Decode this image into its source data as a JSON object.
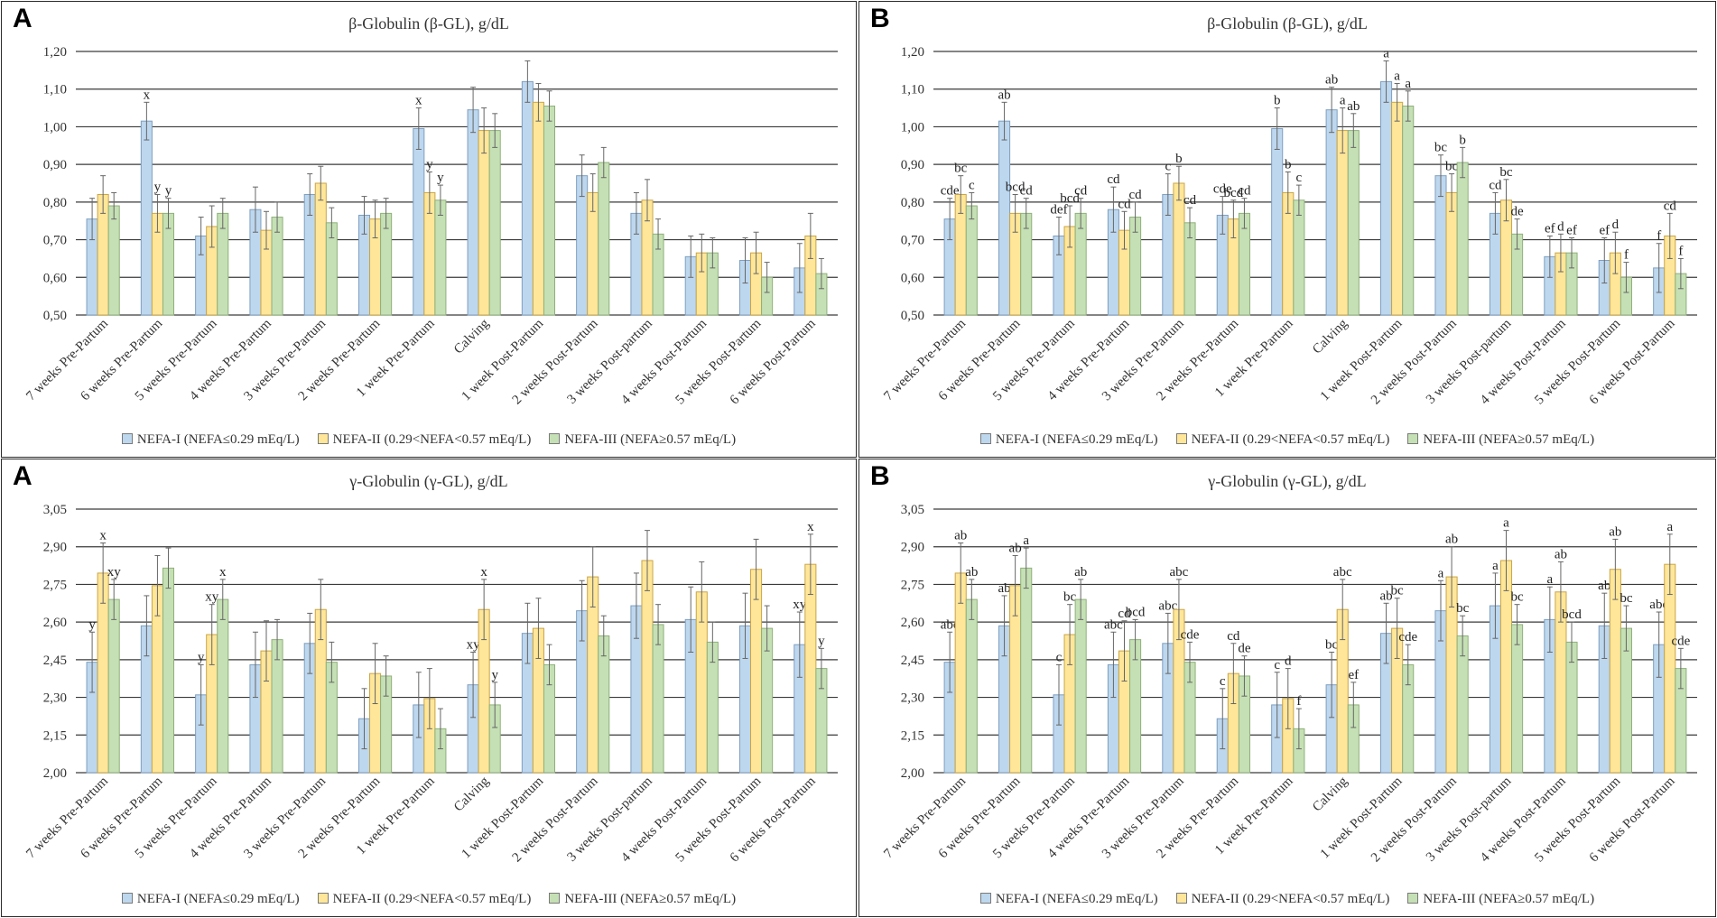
{
  "legend": [
    {
      "label": "NEFA-I (NEFA≤0.29 mEq/L)",
      "color": "#bdd7ee"
    },
    {
      "label": "NEFA-II (0.29<NEFA<0.57 mEq/L)",
      "color": "#ffe699"
    },
    {
      "label": "NEFA-III (NEFA≥0.57 mEq/L)",
      "color": "#c5e0b4"
    }
  ],
  "chart_data": [
    {
      "panel": "A",
      "type": "bar",
      "title": "β-Globulin (β-GL), g/dL",
      "ylim": [
        0.5,
        1.2
      ],
      "yticks": [
        "0,50",
        "0,60",
        "0,70",
        "0,80",
        "0,90",
        "1,00",
        "1,10",
        "1,20"
      ],
      "categories": [
        "7 weeks Pre-Partum",
        "6 weeks Pre-Partum",
        "5 weeks Pre-Partum",
        "4 weeks Pre-Partum",
        "3 weeks Pre-Partum",
        "2 weeks Pre-Partum",
        "1 week Pre-Partum",
        "Calving",
        "1 week Post-Partum",
        "2 weeks Post-Partum",
        "3 weeks Post-partum",
        "4 weeks Post-Partum",
        "5 weeks Post-Partum",
        "6 weeks Post-Partum"
      ],
      "series": [
        {
          "name": "NEFA-I (NEFA≤0.29 mEq/L)",
          "values": [
            0.755,
            1.015,
            0.71,
            0.78,
            0.82,
            0.765,
            0.995,
            1.045,
            1.12,
            0.87,
            0.77,
            0.655,
            0.645,
            0.625
          ],
          "errors": [
            0.055,
            0.05,
            0.05,
            0.06,
            0.055,
            0.05,
            0.055,
            0.06,
            0.055,
            0.055,
            0.055,
            0.055,
            0.06,
            0.065
          ],
          "labels": [
            "",
            "x",
            "",
            "",
            "",
            "",
            "x",
            "",
            "",
            "",
            "",
            "",
            "",
            ""
          ]
        },
        {
          "name": "NEFA-II (0.29<NEFA<0.57 mEq/L)",
          "values": [
            0.82,
            0.77,
            0.735,
            0.725,
            0.85,
            0.755,
            0.825,
            0.99,
            1.065,
            0.825,
            0.805,
            0.665,
            0.665,
            0.71
          ],
          "errors": [
            0.05,
            0.05,
            0.055,
            0.05,
            0.045,
            0.05,
            0.055,
            0.06,
            0.05,
            0.05,
            0.055,
            0.05,
            0.055,
            0.06
          ],
          "labels": [
            "",
            "y",
            "",
            "",
            "",
            "",
            "y",
            "",
            "",
            "",
            "",
            "",
            "",
            ""
          ]
        },
        {
          "name": "NEFA-III (NEFA≥0.57 mEq/L)",
          "values": [
            0.79,
            0.77,
            0.77,
            0.76,
            0.745,
            0.77,
            0.805,
            0.99,
            1.055,
            0.905,
            0.715,
            0.665,
            0.6,
            0.61
          ],
          "errors": [
            0.035,
            0.04,
            0.04,
            0.04,
            0.04,
            0.04,
            0.04,
            0.045,
            0.04,
            0.04,
            0.04,
            0.04,
            0.04,
            0.04
          ],
          "labels": [
            "",
            "y",
            "",
            "",
            "",
            "",
            "y",
            "",
            "",
            "",
            "",
            "",
            "",
            ""
          ]
        }
      ]
    },
    {
      "panel": "B",
      "type": "bar",
      "title": "β-Globulin (β-GL), g/dL",
      "ylim": [
        0.5,
        1.2
      ],
      "yticks": [
        "0,50",
        "0,60",
        "0,70",
        "0,80",
        "0,90",
        "1,00",
        "1,10",
        "1,20"
      ],
      "categories": [
        "7 weeks Pre-Partum",
        "6 weeks Pre-Partum",
        "5 weeks Pre-Partum",
        "4 weeks Pre-Partum",
        "3 weeks Pre-Partum",
        "2 weeks Pre-Partum",
        "1 week Pre-Partum",
        "Calving",
        "1 week Post-Partum",
        "2 weeks Post-Partum",
        "3 weeks Post-partum",
        "4 weeks Post-Partum",
        "5 weeks Post-Partum",
        "6 weeks Post-Partum"
      ],
      "series": [
        {
          "name": "NEFA-I (NEFA≤0.29 mEq/L)",
          "values": [
            0.755,
            1.015,
            0.71,
            0.78,
            0.82,
            0.765,
            0.995,
            1.045,
            1.12,
            0.87,
            0.77,
            0.655,
            0.645,
            0.625
          ],
          "errors": [
            0.055,
            0.05,
            0.05,
            0.06,
            0.055,
            0.05,
            0.055,
            0.06,
            0.055,
            0.055,
            0.055,
            0.055,
            0.06,
            0.065
          ],
          "labels": [
            "cde",
            "ab",
            "def",
            "cd",
            "c",
            "cde",
            "b",
            "ab",
            "a",
            "bc",
            "cd",
            "ef",
            "ef",
            "f"
          ]
        },
        {
          "name": "NEFA-II (0.29<NEFA<0.57 mEq/L)",
          "values": [
            0.82,
            0.77,
            0.735,
            0.725,
            0.85,
            0.755,
            0.825,
            0.99,
            1.065,
            0.825,
            0.805,
            0.665,
            0.665,
            0.71
          ],
          "errors": [
            0.05,
            0.05,
            0.055,
            0.05,
            0.045,
            0.05,
            0.055,
            0.06,
            0.05,
            0.05,
            0.055,
            0.05,
            0.055,
            0.06
          ],
          "labels": [
            "bc",
            "bcd",
            "bcd",
            "cd",
            "b",
            "bcd",
            "b",
            "a",
            "a",
            "bc",
            "bc",
            "d",
            "d",
            "cd"
          ]
        },
        {
          "name": "NEFA-III (NEFA≥0.57 mEq/L)",
          "values": [
            0.79,
            0.77,
            0.77,
            0.76,
            0.745,
            0.77,
            0.805,
            0.99,
            1.055,
            0.905,
            0.715,
            0.665,
            0.6,
            0.61
          ],
          "errors": [
            0.035,
            0.04,
            0.04,
            0.04,
            0.04,
            0.04,
            0.04,
            0.045,
            0.04,
            0.04,
            0.04,
            0.04,
            0.04,
            0.04
          ],
          "labels": [
            "c",
            "cd",
            "cd",
            "cd",
            "cd",
            "cd",
            "c",
            "ab",
            "a",
            "b",
            "de",
            "ef",
            "f",
            "f"
          ]
        }
      ]
    },
    {
      "panel": "A",
      "type": "bar",
      "title": "γ-Globulin (γ-GL), g/dL",
      "ylim": [
        2.0,
        3.05
      ],
      "yticks": [
        "2,00",
        "2,15",
        "2,30",
        "2,45",
        "2,60",
        "2,75",
        "2,90",
        "3,05"
      ],
      "categories": [
        "7 weeks Pre-Partum",
        "6 weeks Pre-Partum",
        "5 weeks Pre-Partum",
        "4 weeks Pre-Partum",
        "3 weeks Pre-Partum",
        "2 weeks Pre-Partum",
        "1 week Pre-Partum",
        "Calving",
        "1 week Post-Partum",
        "2 weeks Post-Partum",
        "3 weeks Post-partum",
        "4 weeks Post-Partum",
        "5 weeks Post-Partum",
        "6 weeks Post-Partum"
      ],
      "series": [
        {
          "name": "NEFA-I (NEFA≤0.29 mEq/L)",
          "values": [
            2.44,
            2.585,
            2.31,
            2.43,
            2.515,
            2.215,
            2.27,
            2.35,
            2.555,
            2.645,
            2.665,
            2.61,
            2.585,
            2.51
          ],
          "errors": [
            0.12,
            0.12,
            0.12,
            0.13,
            0.12,
            0.12,
            0.13,
            0.13,
            0.12,
            0.12,
            0.13,
            0.13,
            0.13,
            0.13
          ],
          "labels": [
            "y",
            "",
            "y",
            "",
            "",
            "",
            "",
            "xy",
            "",
            "",
            "",
            "",
            "",
            "xy"
          ]
        },
        {
          "name": "NEFA-II (0.29<NEFA<0.57 mEq/L)",
          "values": [
            2.795,
            2.745,
            2.55,
            2.485,
            2.65,
            2.395,
            2.295,
            2.65,
            2.575,
            2.78,
            2.845,
            2.72,
            2.81,
            2.83
          ],
          "errors": [
            0.12,
            0.12,
            0.12,
            0.12,
            0.12,
            0.12,
            0.12,
            0.12,
            0.12,
            0.12,
            0.12,
            0.12,
            0.12,
            0.12
          ],
          "labels": [
            "x",
            "",
            "xy",
            "",
            "",
            "",
            "",
            "x",
            "",
            "",
            "",
            "",
            "",
            "x"
          ]
        },
        {
          "name": "NEFA-III (NEFA≥0.57 mEq/L)",
          "values": [
            2.69,
            2.815,
            2.69,
            2.53,
            2.44,
            2.385,
            2.175,
            2.27,
            2.43,
            2.545,
            2.59,
            2.52,
            2.575,
            2.415
          ],
          "errors": [
            0.08,
            0.08,
            0.08,
            0.08,
            0.08,
            0.08,
            0.08,
            0.09,
            0.08,
            0.08,
            0.08,
            0.08,
            0.09,
            0.08
          ],
          "labels": [
            "xy",
            "",
            "x",
            "",
            "",
            "",
            "",
            "y",
            "",
            "",
            "",
            "",
            "",
            "y"
          ]
        }
      ]
    },
    {
      "panel": "B",
      "type": "bar",
      "title": "γ-Globulin (γ-GL), g/dL",
      "ylim": [
        2.0,
        3.05
      ],
      "yticks": [
        "2,00",
        "2,15",
        "2,30",
        "2,45",
        "2,60",
        "2,75",
        "2,90",
        "3,05"
      ],
      "categories": [
        "7 weeks Pre-Partum",
        "6 weeks Pre-Partum",
        "5 weeks Pre-Partum",
        "4 weeks Pre-Partum",
        "3 weeks Pre-Partum",
        "2 weeks Pre-Partum",
        "1 week Pre-Partum",
        "Calving",
        "1 week Post-Partum",
        "2 weeks Post-Partum",
        "3 weeks Post-partum",
        "4 weeks Post-Partum",
        "5 weeks Post-Partum",
        "6 weeks Post-Partum"
      ],
      "series": [
        {
          "name": "NEFA-I (NEFA≤0.29 mEq/L)",
          "values": [
            2.44,
            2.585,
            2.31,
            2.43,
            2.515,
            2.215,
            2.27,
            2.35,
            2.555,
            2.645,
            2.665,
            2.61,
            2.585,
            2.51
          ],
          "errors": [
            0.12,
            0.12,
            0.12,
            0.13,
            0.12,
            0.12,
            0.13,
            0.13,
            0.12,
            0.12,
            0.13,
            0.13,
            0.13,
            0.13
          ],
          "labels": [
            "abc",
            "ab",
            "c",
            "abc",
            "abc",
            "c",
            "c",
            "bc",
            "ab",
            "a",
            "a",
            "a",
            "ab",
            "abc"
          ]
        },
        {
          "name": "NEFA-II (0.29<NEFA<0.57 mEq/L)",
          "values": [
            2.795,
            2.745,
            2.55,
            2.485,
            2.65,
            2.395,
            2.295,
            2.65,
            2.575,
            2.78,
            2.845,
            2.72,
            2.81,
            2.83
          ],
          "errors": [
            0.12,
            0.12,
            0.12,
            0.12,
            0.12,
            0.12,
            0.12,
            0.12,
            0.12,
            0.12,
            0.12,
            0.12,
            0.12,
            0.12
          ],
          "labels": [
            "ab",
            "ab",
            "bc",
            "cd",
            "abc",
            "cd",
            "d",
            "abc",
            "bc",
            "ab",
            "a",
            "ab",
            "ab",
            "a"
          ]
        },
        {
          "name": "NEFA-III (NEFA≥0.57 mEq/L)",
          "values": [
            2.69,
            2.815,
            2.69,
            2.53,
            2.44,
            2.385,
            2.175,
            2.27,
            2.43,
            2.545,
            2.59,
            2.52,
            2.575,
            2.415
          ],
          "errors": [
            0.08,
            0.08,
            0.08,
            0.08,
            0.08,
            0.08,
            0.08,
            0.09,
            0.08,
            0.08,
            0.08,
            0.08,
            0.09,
            0.08
          ],
          "labels": [
            "ab",
            "a",
            "ab",
            "bcd",
            "cde",
            "de",
            "f",
            "ef",
            "cde",
            "bc",
            "bc",
            "bcd",
            "bc",
            "cde"
          ]
        }
      ]
    }
  ]
}
